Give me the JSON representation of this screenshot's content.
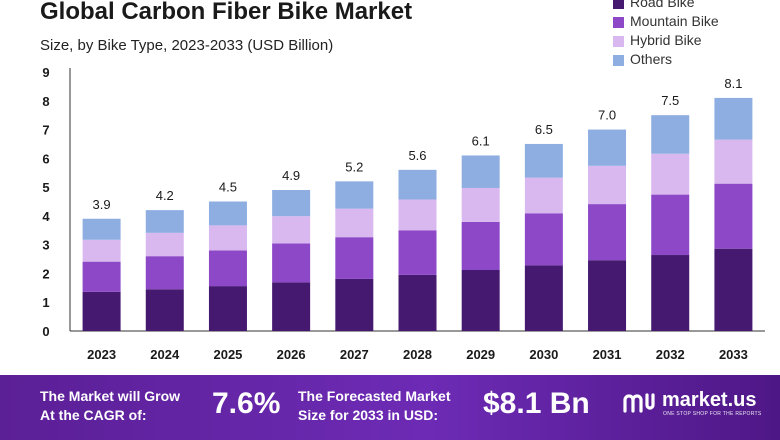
{
  "header": {
    "title": "Global Carbon Fiber Bike Market",
    "subtitle": "Size, by Bike Type, 2023-2033 (USD Billion)"
  },
  "legend": [
    {
      "label": "Road Bike",
      "color": "#45196f"
    },
    {
      "label": "Mountain Bike",
      "color": "#8c48c7"
    },
    {
      "label": "Hybrid Bike",
      "color": "#d9b8ef"
    },
    {
      "label": "Others",
      "color": "#8eaee2"
    }
  ],
  "chart_data": {
    "type": "bar",
    "stacked": true,
    "title": "Global Carbon Fiber Bike Market",
    "subtitle": "Size, by Bike Type, 2023-2033 (USD Billion)",
    "categories": [
      "2023",
      "2024",
      "2025",
      "2026",
      "2027",
      "2028",
      "2029",
      "2030",
      "2031",
      "2032",
      "2033"
    ],
    "totals": [
      3.9,
      4.2,
      4.5,
      4.9,
      5.2,
      5.6,
      6.1,
      6.5,
      7.0,
      7.5,
      8.1
    ],
    "series": [
      {
        "name": "Road Bike",
        "color": "#45196f",
        "values": [
          1.36,
          1.45,
          1.56,
          1.69,
          1.81,
          1.95,
          2.12,
          2.28,
          2.46,
          2.64,
          2.86
        ]
      },
      {
        "name": "Mountain Bike",
        "color": "#8c48c7",
        "values": [
          1.05,
          1.15,
          1.24,
          1.35,
          1.45,
          1.55,
          1.67,
          1.81,
          1.95,
          2.1,
          2.26
        ]
      },
      {
        "name": "Hybrid Bike",
        "color": "#d9b8ef",
        "values": [
          0.76,
          0.81,
          0.87,
          0.95,
          0.99,
          1.07,
          1.18,
          1.24,
          1.33,
          1.42,
          1.53
        ]
      },
      {
        "name": "Others",
        "color": "#8eaee2",
        "values": [
          0.73,
          0.79,
          0.83,
          0.91,
          0.95,
          1.03,
          1.13,
          1.17,
          1.26,
          1.34,
          1.45
        ]
      }
    ],
    "yticks": [
      0,
      1,
      2,
      3,
      4,
      5,
      6,
      7,
      8,
      9
    ],
    "ylim": [
      0,
      9
    ],
    "xlabel": "",
    "ylabel": "",
    "grid": false,
    "legend_position": "top-right"
  },
  "footer": {
    "cagr_line1": "The Market will Grow",
    "cagr_line2": "At the CAGR of:",
    "cagr_value": "7.6%",
    "forecast_line1": "The Forecasted Market",
    "forecast_line2": "Size for 2033 in USD:",
    "forecast_value": "$8.1 Bn",
    "brand_name": "market.us",
    "brand_tagline": "ONE STOP SHOP FOR THE REPORTS"
  },
  "colors": {
    "footer_bg": "#6a2bb0",
    "axis": "#333333",
    "text": "#1a1a1a"
  }
}
